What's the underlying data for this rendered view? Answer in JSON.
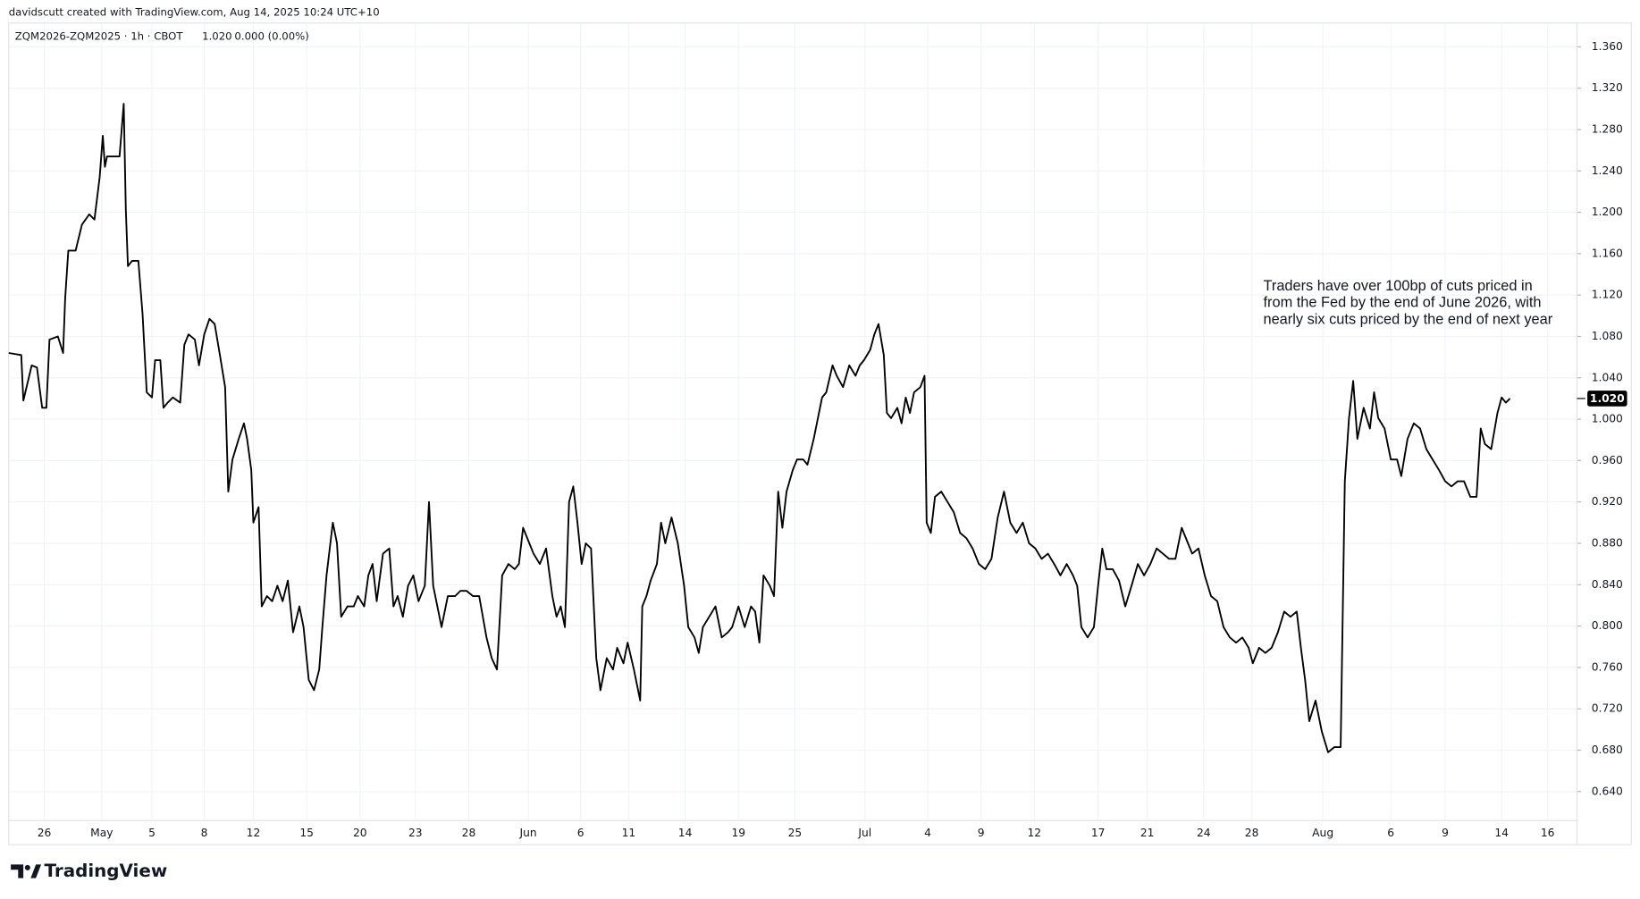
{
  "chart_data": {
    "type": "line",
    "credit": "davidscutt created with TradingView.com, Aug 14, 2025 10:24 UTC+10",
    "symbol": "ZQM2026-ZQM2025 · 1h · CBOT",
    "legend_values": [
      "1.020",
      "0.000 (0.00%)"
    ],
    "annotation": [
      "Traders have over 100bp of cuts priced in",
      "from the Fed by the end of June 2026, with",
      "nearly six cuts priced by the end of next year"
    ],
    "brand": "TradingView",
    "last_price": {
      "value": 1.02,
      "label": "1.020"
    },
    "grid": true,
    "xlim": [
      0,
      300
    ],
    "ylim": [
      0.617,
      1.383
    ],
    "yticks": [
      {
        "value": 0.64,
        "label": "0.640"
      },
      {
        "value": 0.68,
        "label": "0.680"
      },
      {
        "value": 0.72,
        "label": "0.720"
      },
      {
        "value": 0.76,
        "label": "0.760"
      },
      {
        "value": 0.8,
        "label": "0.800"
      },
      {
        "value": 0.84,
        "label": "0.840"
      },
      {
        "value": 0.88,
        "label": "0.880"
      },
      {
        "value": 0.92,
        "label": "0.920"
      },
      {
        "value": 0.96,
        "label": "0.960"
      },
      {
        "value": 1.0,
        "label": "1.000"
      },
      {
        "value": 1.04,
        "label": "1.040"
      },
      {
        "value": 1.08,
        "label": "1.080"
      },
      {
        "value": 1.12,
        "label": "1.120"
      },
      {
        "value": 1.16,
        "label": "1.160"
      },
      {
        "value": 1.2,
        "label": "1.200"
      },
      {
        "value": 1.24,
        "label": "1.240"
      },
      {
        "value": 1.28,
        "label": "1.280"
      },
      {
        "value": 1.32,
        "label": "1.320"
      },
      {
        "value": 1.36,
        "label": "1.360"
      }
    ],
    "xticks": [
      {
        "value": 6.8,
        "label": "26"
      },
      {
        "value": 17.8,
        "label": "May"
      },
      {
        "value": 27.4,
        "label": "5"
      },
      {
        "value": 37.4,
        "label": "8"
      },
      {
        "value": 46.8,
        "label": "12"
      },
      {
        "value": 57,
        "label": "15"
      },
      {
        "value": 67.2,
        "label": "20"
      },
      {
        "value": 77.8,
        "label": "23"
      },
      {
        "value": 88,
        "label": "28"
      },
      {
        "value": 99.4,
        "label": "Jun"
      },
      {
        "value": 109.4,
        "label": "6"
      },
      {
        "value": 118.6,
        "label": "11"
      },
      {
        "value": 129.4,
        "label": "14"
      },
      {
        "value": 139.6,
        "label": "19"
      },
      {
        "value": 150.4,
        "label": "25"
      },
      {
        "value": 163.8,
        "label": "Jul"
      },
      {
        "value": 175.8,
        "label": "4"
      },
      {
        "value": 186,
        "label": "9"
      },
      {
        "value": 196.2,
        "label": "12"
      },
      {
        "value": 208.4,
        "label": "17"
      },
      {
        "value": 217.8,
        "label": "21"
      },
      {
        "value": 228.6,
        "label": "24"
      },
      {
        "value": 237.8,
        "label": "28"
      },
      {
        "value": 251.4,
        "label": "Aug"
      },
      {
        "value": 264.4,
        "label": "6"
      },
      {
        "value": 274.8,
        "label": "9"
      },
      {
        "value": 285.6,
        "label": "14"
      },
      {
        "value": 294.4,
        "label": "16"
      }
    ],
    "series": [
      {
        "color": "#000000",
        "x": [
          0,
          2.4,
          2.8,
          4.4,
          5.4,
          6.4,
          7.2,
          7.8,
          9.4,
          10.4,
          10.8,
          11.4,
          12.8,
          14,
          15.4,
          16.4,
          17.4,
          18,
          18.4,
          18.8,
          21.2,
          22,
          22.4,
          22.8,
          23.6,
          24.8,
          25.6,
          26.4,
          27.4,
          28,
          29,
          29.6,
          30.4,
          31.4,
          32.8,
          33.6,
          34.4,
          35.6,
          36.4,
          37.4,
          38.4,
          39.4,
          40.4,
          41.4,
          42,
          42.8,
          44,
          45,
          45.6,
          46.4,
          46.8,
          47.8,
          48.4,
          49.4,
          50.4,
          51.4,
          52.4,
          53.4,
          54.4,
          55.6,
          56.4,
          57.4,
          58.4,
          59.4,
          60,
          60.8,
          62,
          62.8,
          63.6,
          64.8,
          66,
          66.8,
          68,
          68.8,
          69.6,
          70.4,
          71.6,
          72.8,
          73.6,
          74.4,
          75.4,
          76.4,
          77.4,
          78.4,
          79.6,
          80.4,
          81.2,
          82,
          82.8,
          84,
          85.4,
          86.4,
          87.6,
          88.8,
          90,
          91.4,
          92.4,
          93.4,
          94.4,
          95.6,
          96.8,
          97.6,
          98.4,
          99.6,
          100.4,
          101.6,
          102.8,
          104,
          104.8,
          105.6,
          106.4,
          107.2,
          108,
          108.8,
          109.6,
          110.4,
          111.4,
          112.4,
          113.2,
          114.4,
          115.6,
          116.4,
          117.6,
          118.4,
          119.6,
          120.8,
          121.2,
          122,
          122.8,
          124,
          124.8,
          125.6,
          126.8,
          128,
          129.2,
          130,
          131.2,
          132,
          132.8,
          134,
          135.2,
          136.4,
          137.6,
          138.4,
          139.6,
          140.8,
          142,
          142.8,
          143.6,
          144.4,
          145.6,
          146.4,
          147.2,
          148,
          148.8,
          150,
          150.8,
          152,
          152.8,
          154,
          154.8,
          155.6,
          156.4,
          157.6,
          158.4,
          159.6,
          160.8,
          162,
          162.8,
          163.6,
          164.8,
          165.6,
          166.4,
          167.4,
          168,
          168.8,
          170,
          170.8,
          171.6,
          172.4,
          173.2,
          174.4,
          175.2,
          175.6,
          176.4,
          177.2,
          178.4,
          179.6,
          180.8,
          182,
          183.2,
          184.4,
          185.6,
          186.8,
          188,
          189.2,
          190.4,
          191.6,
          192.8,
          194,
          195.2,
          196.4,
          197.6,
          198.8,
          200,
          201.2,
          202.4,
          203.6,
          204.4,
          205.2,
          206.4,
          207.6,
          208.4,
          209.2,
          210,
          211.2,
          212.4,
          213.6,
          214.8,
          216,
          217.2,
          218.4,
          219.6,
          220.8,
          222,
          223.2,
          224.4,
          225.6,
          226.4,
          227.6,
          228.8,
          230,
          231.2,
          232.4,
          233.6,
          234.8,
          236,
          237.2,
          238,
          239.2,
          240.4,
          241.6,
          242.8,
          244,
          245.2,
          246.4,
          247.2,
          248,
          248.8,
          250,
          251.2,
          252.4,
          253.6,
          254.8,
          255.6,
          256.4,
          257.2,
          258,
          259.2,
          260.4,
          261.2,
          262,
          263.2,
          264.4,
          265.6,
          266.4,
          267.6,
          268.8,
          270,
          271.2,
          272.4,
          273.6,
          274.8,
          276,
          277.2,
          278.4,
          279.6,
          280.8,
          281.6,
          282.4,
          283.6,
          284.8,
          285.6,
          286.4,
          287.2
        ],
        "values": [
          1.064,
          1.062,
          1.018,
          1.052,
          1.05,
          1.011,
          1.011,
          1.077,
          1.08,
          1.064,
          1.117,
          1.163,
          1.163,
          1.188,
          1.198,
          1.193,
          1.234,
          1.274,
          1.244,
          1.254,
          1.254,
          1.305,
          1.203,
          1.148,
          1.153,
          1.153,
          1.102,
          1.026,
          1.021,
          1.057,
          1.057,
          1.011,
          1.016,
          1.021,
          1.016,
          1.072,
          1.082,
          1.077,
          1.052,
          1.082,
          1.097,
          1.092,
          1.062,
          1.031,
          0.93,
          0.961,
          0.981,
          0.996,
          0.981,
          0.951,
          0.9,
          0.915,
          0.819,
          0.829,
          0.824,
          0.839,
          0.824,
          0.844,
          0.794,
          0.819,
          0.799,
          0.748,
          0.738,
          0.758,
          0.799,
          0.849,
          0.9,
          0.88,
          0.809,
          0.819,
          0.819,
          0.829,
          0.819,
          0.849,
          0.86,
          0.824,
          0.87,
          0.875,
          0.819,
          0.829,
          0.809,
          0.839,
          0.849,
          0.824,
          0.839,
          0.92,
          0.839,
          0.819,
          0.799,
          0.829,
          0.829,
          0.834,
          0.834,
          0.829,
          0.829,
          0.789,
          0.769,
          0.758,
          0.849,
          0.86,
          0.855,
          0.86,
          0.895,
          0.88,
          0.87,
          0.86,
          0.875,
          0.829,
          0.809,
          0.819,
          0.799,
          0.92,
          0.935,
          0.9,
          0.86,
          0.88,
          0.875,
          0.769,
          0.738,
          0.769,
          0.758,
          0.779,
          0.764,
          0.784,
          0.758,
          0.728,
          0.819,
          0.829,
          0.844,
          0.86,
          0.9,
          0.88,
          0.905,
          0.88,
          0.839,
          0.799,
          0.789,
          0.774,
          0.799,
          0.809,
          0.819,
          0.789,
          0.794,
          0.799,
          0.819,
          0.799,
          0.819,
          0.814,
          0.784,
          0.849,
          0.839,
          0.829,
          0.93,
          0.895,
          0.93,
          0.951,
          0.961,
          0.961,
          0.956,
          0.981,
          1.001,
          1.021,
          1.026,
          1.052,
          1.042,
          1.031,
          1.052,
          1.042,
          1.052,
          1.057,
          1.067,
          1.082,
          1.092,
          1.062,
          1.006,
          1.001,
          1.011,
          0.996,
          1.021,
          1.006,
          1.026,
          1.031,
          1.042,
          0.9,
          0.89,
          0.925,
          0.93,
          0.92,
          0.91,
          0.89,
          0.885,
          0.875,
          0.86,
          0.855,
          0.865,
          0.905,
          0.93,
          0.9,
          0.89,
          0.9,
          0.88,
          0.875,
          0.865,
          0.87,
          0.86,
          0.849,
          0.86,
          0.849,
          0.839,
          0.799,
          0.789,
          0.799,
          0.839,
          0.875,
          0.855,
          0.855,
          0.844,
          0.819,
          0.839,
          0.86,
          0.849,
          0.86,
          0.875,
          0.87,
          0.865,
          0.865,
          0.895,
          0.88,
          0.87,
          0.875,
          0.849,
          0.829,
          0.824,
          0.799,
          0.789,
          0.784,
          0.789,
          0.779,
          0.764,
          0.779,
          0.774,
          0.779,
          0.794,
          0.814,
          0.809,
          0.814,
          0.779,
          0.748,
          0.708,
          0.728,
          0.698,
          0.678,
          0.683,
          0.683,
          0.94,
          1.001,
          1.037,
          0.981,
          1.011,
          0.991,
          1.026,
          1.001,
          0.991,
          0.961,
          0.961,
          0.945,
          0.981,
          0.996,
          0.991,
          0.971,
          0.961,
          0.951,
          0.94,
          0.935,
          0.94,
          0.94,
          0.925,
          0.925,
          0.991,
          0.976,
          0.971,
          1.006,
          1.021,
          1.016,
          1.02
        ]
      }
    ]
  }
}
